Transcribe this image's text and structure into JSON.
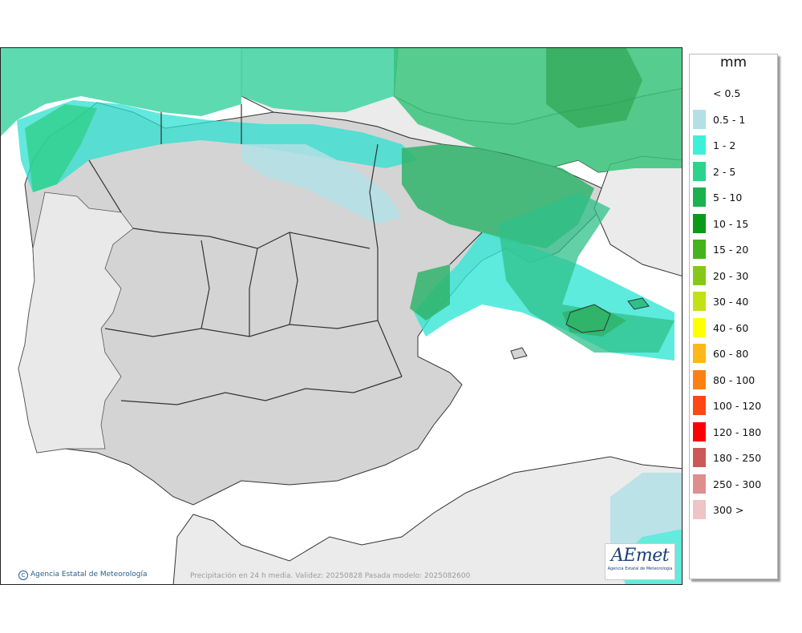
{
  "map": {
    "credit": "Agencia Estatal de Meteorología",
    "footnote": "Precipitación en 24 h media. Validez: 20250828 Pasada modelo: 2025082600",
    "logo": {
      "word": "AEmet",
      "subtitle": "Agencia Estatal de Meteorología"
    }
  },
  "legend": {
    "title": "mm",
    "items": [
      {
        "label": "< 0.5",
        "color": "#ffffff"
      },
      {
        "label": "0.5 - 1",
        "color": "#b2e0e6"
      },
      {
        "label": "1 - 2",
        "color": "#3ff0d8"
      },
      {
        "label": "2 - 5",
        "color": "#2dd28c"
      },
      {
        "label": "5 - 10",
        "color": "#19b24c"
      },
      {
        "label": "10 - 15",
        "color": "#0b9a18"
      },
      {
        "label": "15 - 20",
        "color": "#45b41c"
      },
      {
        "label": "20 - 30",
        "color": "#86c81a"
      },
      {
        "label": "30 - 40",
        "color": "#c3e214"
      },
      {
        "label": "40 - 60",
        "color": "#ffff00"
      },
      {
        "label": "60 - 80",
        "color": "#ffb719"
      },
      {
        "label": "80 - 100",
        "color": "#ff7f12"
      },
      {
        "label": "100 - 120",
        "color": "#ff4712"
      },
      {
        "label": "120 - 180",
        "color": "#ff0000"
      },
      {
        "label": "180 - 250",
        "color": "#cc5858"
      },
      {
        "label": "250 - 300",
        "color": "#df8e8e"
      },
      {
        "label": "300 >",
        "color": "#efc4c4"
      }
    ]
  }
}
